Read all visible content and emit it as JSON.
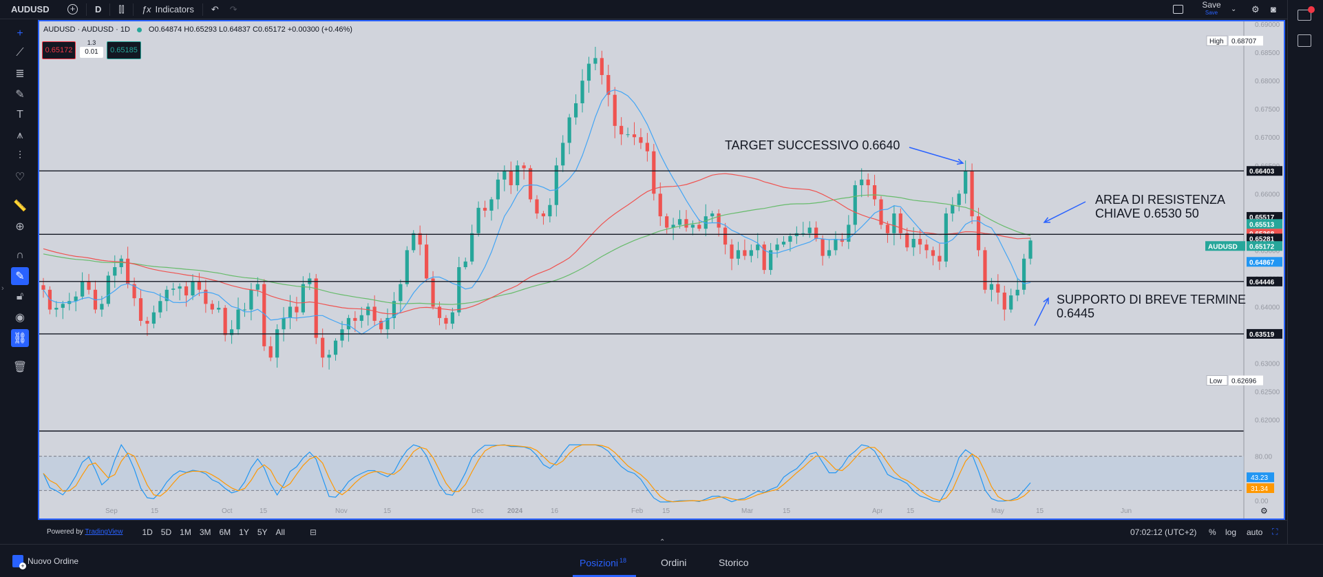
{
  "header": {
    "symbol": "AUDUSD",
    "interval": "D",
    "indicators_label": "Indicators",
    "save_label": "Save",
    "save_sub": "Save"
  },
  "legend": {
    "title": "AUDUSD · AUDUSD · 1D",
    "ohlc": "O0.64874 H0.65293 L0.64837 C0.65172 +0.00300 (+0.46%)",
    "sell_price": "0.65172",
    "spread_top": "1.3",
    "spread": "0.01",
    "buy_price": "0.65185"
  },
  "price_axis": {
    "ticks": [
      "0.69000",
      "0.68500",
      "0.68000",
      "0.67500",
      "0.67000",
      "0.66500",
      "0.66000",
      "0.65500",
      "0.65000",
      "0.64500",
      "0.64000",
      "0.63500",
      "0.63000",
      "0.62500",
      "0.62000"
    ],
    "high_label": "High",
    "high_value": "0.68707",
    "low_label": "Low",
    "low_value": "0.62696",
    "labels": {
      "l1": "0.66403",
      "l2": "0.65517",
      "l3": "0.65513",
      "l4": "0.65368",
      "l5": "0.65281",
      "sym": "AUDUSD",
      "l6": "0.65172",
      "l7": "0.64867",
      "l8": "0.64446",
      "l9": "0.63519"
    }
  },
  "osc_axis": {
    "ticks": [
      "80.00",
      "0.00"
    ],
    "blue": "43.23",
    "orange": "31.34"
  },
  "time_axis": [
    "Sep",
    "15",
    "Oct",
    "15",
    "Nov",
    "15",
    "Dec",
    "2024",
    "16",
    "Feb",
    "15",
    "Mar",
    "15",
    "Apr",
    "15",
    "May",
    "15",
    "Jun"
  ],
  "annotations": {
    "target": "TARGET SUCCESSIVO 0.6640",
    "resist_1": "AREA DI RESISTENZA",
    "resist_2": "CHIAVE 0.6530 50",
    "support_1": "SUPPORTO DI BREVE TERMINE",
    "support_2": "0.6445"
  },
  "bottom": {
    "powered": "Powered by",
    "brand": "TradingView",
    "timeframes": [
      "1D",
      "5D",
      "1M",
      "3M",
      "6M",
      "1Y",
      "5Y",
      "All"
    ],
    "clock": "07:02:12 (UTC+2)",
    "pct": "%",
    "log": "log",
    "auto": "auto"
  },
  "footer": {
    "new_order": "Nuovo Ordine",
    "tab_positions": "Posizioni",
    "positions_count": "18",
    "tab_orders": "Ordini",
    "tab_history": "Storico"
  },
  "chart_data": {
    "type": "candlestick",
    "symbol": "AUDUSD",
    "interval": "1D",
    "ylim": [
      0.618,
      0.6905
    ],
    "horizontal_levels": [
      0.66403,
      0.65517,
      0.65281,
      0.64446,
      0.63519
    ],
    "closes": [
      0.643,
      0.6395,
      0.6398,
      0.6405,
      0.641,
      0.6418,
      0.6445,
      0.643,
      0.6395,
      0.6405,
      0.6455,
      0.647,
      0.6485,
      0.644,
      0.6415,
      0.6375,
      0.637,
      0.639,
      0.641,
      0.643,
      0.6432,
      0.6436,
      0.642,
      0.6445,
      0.643,
      0.6405,
      0.6395,
      0.6398,
      0.635,
      0.636,
      0.6395,
      0.6395,
      0.643,
      0.644,
      0.633,
      0.631,
      0.636,
      0.638,
      0.64,
      0.639,
      0.644,
      0.645,
      0.6345,
      0.631,
      0.6315,
      0.634,
      0.636,
      0.638,
      0.6375,
      0.6385,
      0.64,
      0.6375,
      0.636,
      0.638,
      0.641,
      0.644,
      0.65,
      0.653,
      0.651,
      0.645,
      0.64,
      0.638,
      0.637,
      0.639,
      0.647,
      0.648,
      0.653,
      0.6575,
      0.657,
      0.659,
      0.6625,
      0.664,
      0.6615,
      0.665,
      0.6645,
      0.659,
      0.6565,
      0.656,
      0.658,
      0.665,
      0.669,
      0.6735,
      0.676,
      0.68,
      0.683,
      0.684,
      0.681,
      0.6775,
      0.672,
      0.6705,
      0.6705,
      0.67,
      0.669,
      0.6675,
      0.66,
      0.656,
      0.654,
      0.6545,
      0.6555,
      0.654,
      0.6545,
      0.6538,
      0.656,
      0.6565,
      0.654,
      0.651,
      0.6485,
      0.65,
      0.649,
      0.65,
      0.651,
      0.6465,
      0.65,
      0.651,
      0.6515,
      0.6525,
      0.653,
      0.653,
      0.654,
      0.652,
      0.649,
      0.65,
      0.652,
      0.6515,
      0.6545,
      0.6615,
      0.6625,
      0.6615,
      0.659,
      0.6545,
      0.653,
      0.6565,
      0.653,
      0.6505,
      0.652,
      0.651,
      0.65,
      0.649,
      0.648,
      0.6565,
      0.658,
      0.66,
      0.664,
      0.656,
      0.65,
      0.643,
      0.644,
      0.6425,
      0.6395,
      0.642,
      0.643,
      0.6485,
      0.65172
    ],
    "ema_blue_last": 0.64867,
    "sma_red_last": 0.65368,
    "sma_green_last": 0.65513,
    "oscillator": {
      "name": "Stochastic",
      "k_last": 43.23,
      "d_last": 31.34,
      "levels": [
        80,
        20
      ]
    }
  }
}
